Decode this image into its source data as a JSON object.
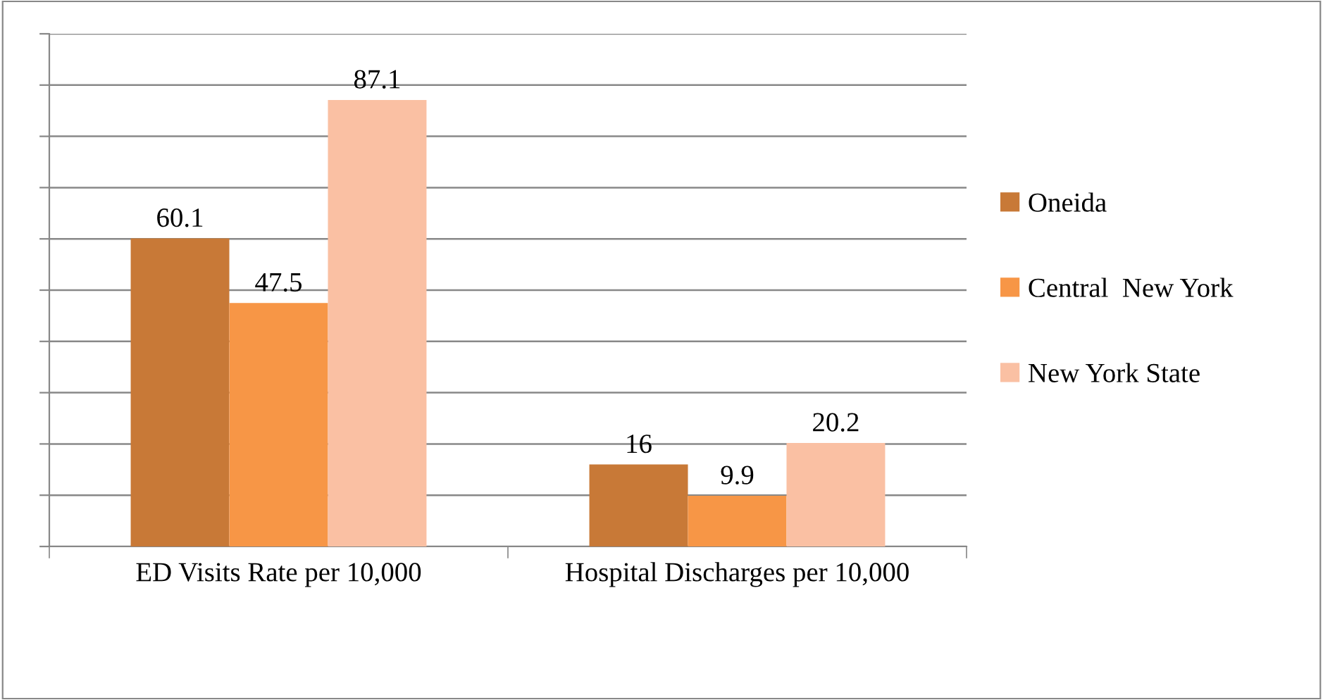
{
  "chart_data": {
    "type": "bar",
    "categories": [
      "ED Visits Rate per 10,000",
      "Hospital Discharges per 10,000"
    ],
    "series": [
      {
        "name": "Oneida",
        "color": "#c87937",
        "values": [
          60.1,
          16
        ]
      },
      {
        "name": "Central  New York",
        "color": "#f79646",
        "values": [
          47.5,
          9.9
        ]
      },
      {
        "name": "New York State",
        "color": "#fac0a3",
        "values": [
          87.1,
          20.2
        ]
      }
    ],
    "ylim": [
      0,
      100
    ],
    "yticks": [
      {
        "value": 0,
        "label": null
      },
      {
        "value": 10,
        "label": null
      },
      {
        "value": 20,
        "label": null
      },
      {
        "value": 30,
        "label": null
      },
      {
        "value": 40,
        "label": null
      },
      {
        "value": 50,
        "label": null
      },
      {
        "value": 60,
        "label": null
      },
      {
        "value": 70,
        "label": null
      },
      {
        "value": 80,
        "label": null
      },
      {
        "value": 90,
        "label": null
      },
      {
        "value": 100,
        "label": null
      }
    ],
    "tick_labels": "x",
    "grid": "y",
    "legend": "right",
    "data_labels": true
  }
}
